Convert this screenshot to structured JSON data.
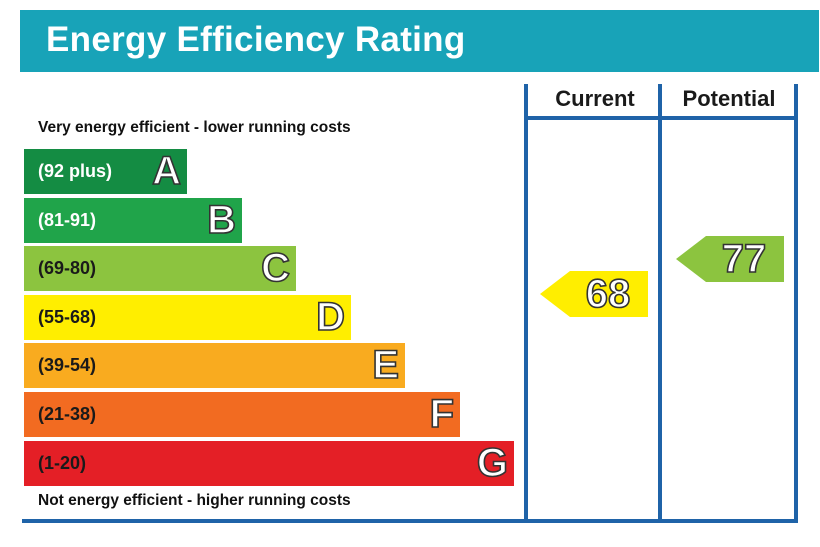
{
  "title": "Energy Efficiency Rating",
  "columns": {
    "current": "Current",
    "potential": "Potential"
  },
  "top_caption": "Very energy efficient - lower running costs",
  "bottom_caption": "Not energy efficient - higher running costs",
  "chart_data": {
    "type": "bar",
    "title": "Energy Efficiency Rating",
    "bands": [
      {
        "range": "(92 plus)",
        "letter": "A",
        "min": 92,
        "max": 100,
        "color": "#148c43",
        "text_color": "#ffffff"
      },
      {
        "range": "(81-91)",
        "letter": "B",
        "min": 81,
        "max": 91,
        "color": "#20a44a",
        "text_color": "#ffffff"
      },
      {
        "range": "(69-80)",
        "letter": "C",
        "min": 69,
        "max": 80,
        "color": "#8cc43f",
        "text_color": "#1a1a1a"
      },
      {
        "range": "(55-68)",
        "letter": "D",
        "min": 55,
        "max": 68,
        "color": "#ffee00",
        "text_color": "#1a1a1a"
      },
      {
        "range": "(39-54)",
        "letter": "E",
        "min": 39,
        "max": 54,
        "color": "#f9ab1f",
        "text_color": "#1a1a1a"
      },
      {
        "range": "(21-38)",
        "letter": "F",
        "min": 21,
        "max": 38,
        "color": "#f26b21",
        "text_color": "#1a1a1a"
      },
      {
        "range": "(1-20)",
        "letter": "G",
        "min": 1,
        "max": 20,
        "color": "#e41f26",
        "text_color": "#1a1a1a"
      }
    ],
    "current": {
      "value": 68,
      "band": "D",
      "color": "#ffee00"
    },
    "potential": {
      "value": 77,
      "band": "C",
      "color": "#8cc43f"
    }
  }
}
